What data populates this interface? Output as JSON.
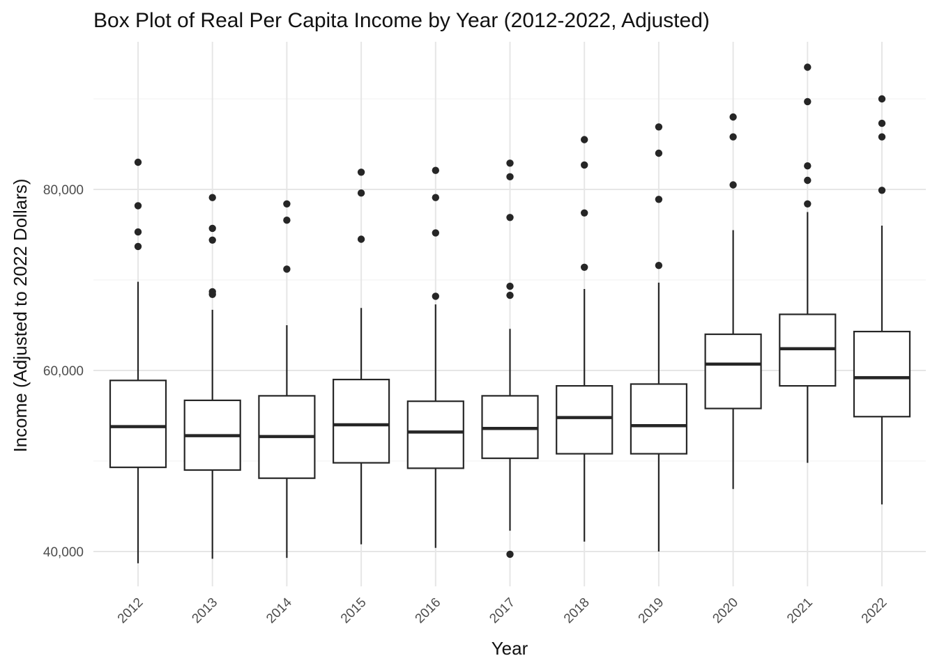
{
  "chart_data": {
    "type": "boxplot",
    "title": "Box Plot of Real Per Capita Income by Year (2012-2022, Adjusted)",
    "xlabel": "Year",
    "ylabel": "Income (Adjusted to 2022 Dollars)",
    "ylim": [
      36500,
      95500
    ],
    "y_ticks": [
      40000,
      60000,
      80000
    ],
    "y_tick_labels": [
      "40,000",
      "60,000",
      "80,000"
    ],
    "grid": true,
    "categories": [
      "2012",
      "2013",
      "2014",
      "2015",
      "2016",
      "2017",
      "2018",
      "2019",
      "2020",
      "2021",
      "2022"
    ],
    "boxes": [
      {
        "year": "2012",
        "whisker_low": 38700,
        "q1": 49300,
        "median": 53800,
        "q3": 58900,
        "whisker_high": 69800,
        "outliers": [
          73700,
          75300,
          78200,
          83000
        ]
      },
      {
        "year": "2013",
        "whisker_low": 39200,
        "q1": 49000,
        "median": 52800,
        "q3": 56700,
        "whisker_high": 66700,
        "outliers": [
          68400,
          68700,
          74400,
          75700,
          79100
        ]
      },
      {
        "year": "2014",
        "whisker_low": 39300,
        "q1": 48100,
        "median": 52700,
        "q3": 57200,
        "whisker_high": 65000,
        "outliers": [
          71200,
          76600,
          78400
        ]
      },
      {
        "year": "2015",
        "whisker_low": 40800,
        "q1": 49800,
        "median": 54000,
        "q3": 59000,
        "whisker_high": 66900,
        "outliers": [
          74500,
          79600,
          81900
        ]
      },
      {
        "year": "2016",
        "whisker_low": 40400,
        "q1": 49200,
        "median": 53200,
        "q3": 56600,
        "whisker_high": 67300,
        "outliers": [
          68200,
          75200,
          79100,
          82100
        ]
      },
      {
        "year": "2017",
        "whisker_low": 42300,
        "q1": 50300,
        "median": 53600,
        "q3": 57200,
        "whisker_high": 64600,
        "outliers": [
          39700,
          68300,
          69300,
          76900,
          81400,
          82900
        ]
      },
      {
        "year": "2018",
        "whisker_low": 41100,
        "q1": 50800,
        "median": 54800,
        "q3": 58300,
        "whisker_high": 69000,
        "outliers": [
          71400,
          77400,
          82700,
          85500
        ]
      },
      {
        "year": "2019",
        "whisker_low": 40000,
        "q1": 50800,
        "median": 53900,
        "q3": 58500,
        "whisker_high": 69700,
        "outliers": [
          71600,
          78900,
          84000,
          86900
        ]
      },
      {
        "year": "2020",
        "whisker_low": 46900,
        "q1": 55800,
        "median": 60700,
        "q3": 64000,
        "whisker_high": 75500,
        "outliers": [
          80500,
          85800,
          88000
        ]
      },
      {
        "year": "2021",
        "whisker_low": 49800,
        "q1": 58300,
        "median": 62400,
        "q3": 66200,
        "whisker_high": 77500,
        "outliers": [
          78400,
          81000,
          82600,
          89700,
          93500
        ]
      },
      {
        "year": "2022",
        "whisker_low": 45200,
        "q1": 54900,
        "median": 59200,
        "q3": 64300,
        "whisker_high": 76000,
        "outliers": [
          79900,
          85800,
          87300,
          90000
        ]
      }
    ],
    "colors": {
      "box_stroke": "#262626",
      "box_fill": "#ffffff",
      "outlier": "#262626",
      "grid_major": "#e6e6e6",
      "grid_minor": "#f0f0f0",
      "text": "#111111",
      "tick_text": "#4d4d4d"
    }
  }
}
